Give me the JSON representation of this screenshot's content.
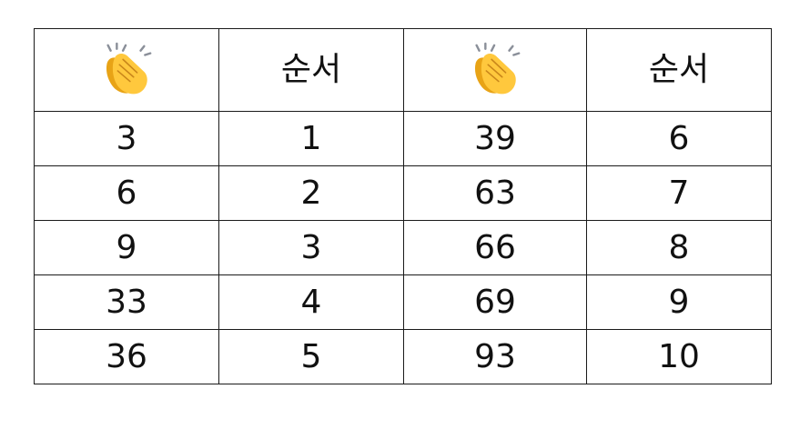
{
  "table": {
    "header": [
      {
        "type": "icon",
        "icon": "clapping-hands-icon"
      },
      {
        "type": "text",
        "text": "순서"
      },
      {
        "type": "icon",
        "icon": "clapping-hands-icon"
      },
      {
        "type": "text",
        "text": "순서"
      }
    ],
    "rows": [
      [
        "3",
        "1",
        "39",
        "6"
      ],
      [
        "6",
        "2",
        "63",
        "7"
      ],
      [
        "9",
        "3",
        "66",
        "8"
      ],
      [
        "33",
        "4",
        "69",
        "9"
      ],
      [
        "36",
        "5",
        "93",
        "10"
      ]
    ]
  },
  "colors": {
    "border": "#1a1a1a",
    "text": "#111111",
    "clap_fill": "#FFC83D",
    "clap_shade": "#E8A316",
    "spark": "#8A8F99"
  }
}
